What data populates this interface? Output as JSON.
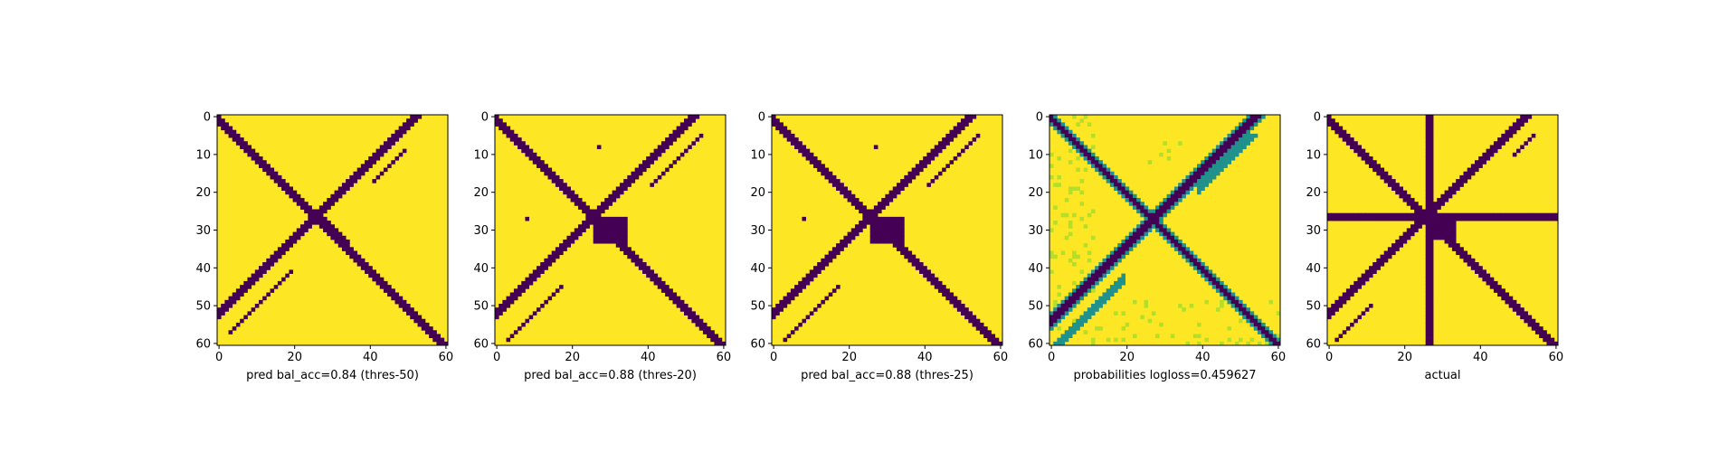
{
  "figure": {
    "background": "#ffffff",
    "colors": {
      "background_class": "#fde725",
      "line_class": "#440154",
      "mid_class": "#21918c",
      "light_class": "#b5de2b"
    }
  },
  "chart_data": [
    {
      "type": "heatmap",
      "xlabel": "pred bal_acc=0.84 (thres-50)",
      "grid_size": 61,
      "xlim": [
        0,
        60
      ],
      "ylim": [
        60,
        0
      ],
      "x_ticks": [
        0,
        20,
        40,
        60
      ],
      "y_ticks": [
        0,
        10,
        20,
        30,
        40,
        50,
        60
      ],
      "colormap": "viridis",
      "description_values": "binary prediction: diagonal, anti-diagonal and parallel short diagonals"
    },
    {
      "type": "heatmap",
      "xlabel": "pred bal_acc=0.88 (thres-20)",
      "grid_size": 61,
      "xlim": [
        0,
        60
      ],
      "ylim": [
        60,
        0
      ],
      "x_ticks": [
        0,
        20,
        40,
        60
      ],
      "y_ticks": [
        0,
        10,
        20,
        30,
        40,
        50,
        60
      ],
      "colormap": "viridis"
    },
    {
      "type": "heatmap",
      "xlabel": "pred bal_acc=0.88 (thres-25)",
      "grid_size": 61,
      "xlim": [
        0,
        60
      ],
      "ylim": [
        60,
        0
      ],
      "x_ticks": [
        0,
        20,
        40,
        60
      ],
      "y_ticks": [
        0,
        10,
        20,
        30,
        40,
        50,
        60
      ],
      "colormap": "viridis"
    },
    {
      "type": "heatmap",
      "xlabel": "probabilities logloss=0.459627",
      "grid_size": 61,
      "xlim": [
        0,
        60
      ],
      "ylim": [
        60,
        0
      ],
      "x_ticks": [
        0,
        20,
        40,
        60
      ],
      "y_ticks": [
        0,
        10,
        20,
        30,
        40,
        50,
        60
      ],
      "colormap": "viridis"
    },
    {
      "type": "heatmap",
      "xlabel": "actual",
      "grid_size": 61,
      "xlim": [
        0,
        60
      ],
      "ylim": [
        60,
        0
      ],
      "x_ticks": [
        0,
        20,
        40,
        60
      ],
      "y_ticks": [
        0,
        10,
        20,
        30,
        40,
        50,
        60
      ],
      "colormap": "viridis"
    }
  ]
}
